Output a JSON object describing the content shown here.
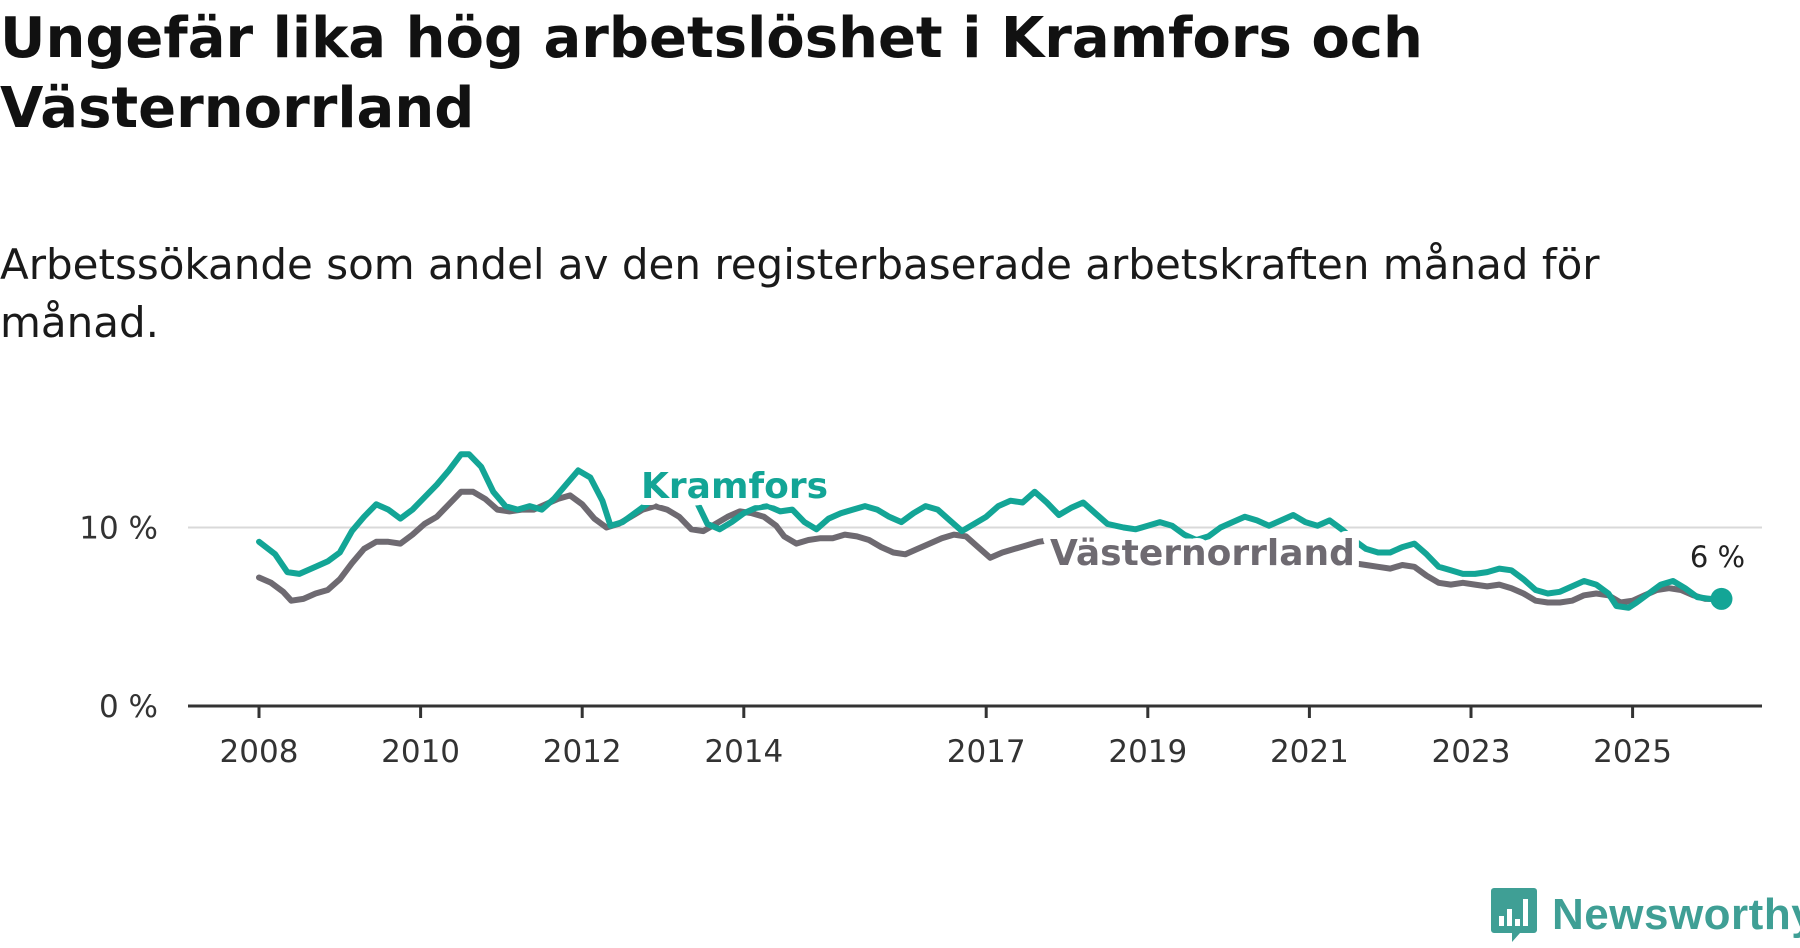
{
  "chart_data": {
    "type": "line",
    "title": "Ungefär lika hög arbetslöshet i Kramfors och Västernorrland",
    "subtitle": "Arbetssökande som andel av den registerbaserade arbetskraften månad för månad.",
    "ylim": [
      0,
      15
    ],
    "y_ticks": [
      {
        "value": 0,
        "label": "0 %"
      },
      {
        "value": 10,
        "label": "10 %"
      }
    ],
    "x_range": [
      2007.0,
      2026.6
    ],
    "x_ticks": [
      {
        "value": 2008,
        "label": "2008"
      },
      {
        "value": 2010,
        "label": "2010"
      },
      {
        "value": 2012,
        "label": "2012"
      },
      {
        "value": 2014,
        "label": "2014"
      },
      {
        "value": 2017,
        "label": "2017"
      },
      {
        "value": 2019,
        "label": "2019"
      },
      {
        "value": 2021,
        "label": "2021"
      },
      {
        "value": 2023,
        "label": "2023"
      },
      {
        "value": 2025,
        "label": "2025"
      }
    ],
    "gridlines": true,
    "series": [
      {
        "name": "Kramfors",
        "color": "#13a596",
        "points": [
          [
            2008.0,
            9.2
          ],
          [
            2008.2,
            8.5
          ],
          [
            2008.35,
            7.5
          ],
          [
            2008.5,
            7.4
          ],
          [
            2008.7,
            7.8
          ],
          [
            2008.85,
            8.1
          ],
          [
            2009.0,
            8.6
          ],
          [
            2009.15,
            9.8
          ],
          [
            2009.3,
            10.6
          ],
          [
            2009.45,
            11.3
          ],
          [
            2009.6,
            11.0
          ],
          [
            2009.75,
            10.5
          ],
          [
            2009.9,
            11.0
          ],
          [
            2010.05,
            11.7
          ],
          [
            2010.2,
            12.4
          ],
          [
            2010.35,
            13.2
          ],
          [
            2010.5,
            14.1
          ],
          [
            2010.6,
            14.1
          ],
          [
            2010.75,
            13.4
          ],
          [
            2010.9,
            12.0
          ],
          [
            2011.05,
            11.2
          ],
          [
            2011.2,
            11.0
          ],
          [
            2011.35,
            11.2
          ],
          [
            2011.5,
            11.0
          ],
          [
            2011.65,
            11.6
          ],
          [
            2011.8,
            12.4
          ],
          [
            2011.95,
            13.2
          ],
          [
            2012.1,
            12.8
          ],
          [
            2012.25,
            11.5
          ],
          [
            2012.35,
            10.1
          ],
          [
            2012.5,
            10.3
          ],
          [
            2012.65,
            10.8
          ],
          [
            2012.8,
            11.3
          ],
          [
            2012.95,
            12.1
          ],
          [
            2013.1,
            12.5
          ],
          [
            2013.25,
            12.4
          ],
          [
            2013.4,
            11.6
          ],
          [
            2013.55,
            10.2
          ],
          [
            2013.7,
            9.9
          ],
          [
            2013.85,
            10.3
          ],
          [
            2014.0,
            10.8
          ],
          [
            2014.15,
            11.1
          ],
          [
            2014.3,
            11.2
          ],
          [
            2014.45,
            10.9
          ],
          [
            2014.6,
            11.0
          ],
          [
            2014.75,
            10.3
          ],
          [
            2014.9,
            9.9
          ],
          [
            2015.05,
            10.5
          ],
          [
            2015.2,
            10.8
          ],
          [
            2015.35,
            11.0
          ],
          [
            2015.5,
            11.2
          ],
          [
            2015.65,
            11.0
          ],
          [
            2015.8,
            10.6
          ],
          [
            2015.95,
            10.3
          ],
          [
            2016.1,
            10.8
          ],
          [
            2016.25,
            11.2
          ],
          [
            2016.4,
            11.0
          ],
          [
            2016.55,
            10.4
          ],
          [
            2016.7,
            9.8
          ],
          [
            2016.85,
            10.2
          ],
          [
            2017.0,
            10.6
          ],
          [
            2017.15,
            11.2
          ],
          [
            2017.3,
            11.5
          ],
          [
            2017.45,
            11.4
          ],
          [
            2017.6,
            12.0
          ],
          [
            2017.75,
            11.4
          ],
          [
            2017.9,
            10.7
          ],
          [
            2018.05,
            11.1
          ],
          [
            2018.2,
            11.4
          ],
          [
            2018.35,
            10.8
          ],
          [
            2018.5,
            10.2
          ],
          [
            2018.7,
            10.0
          ],
          [
            2018.85,
            9.9
          ],
          [
            2019.0,
            10.1
          ],
          [
            2019.15,
            10.3
          ],
          [
            2019.3,
            10.1
          ],
          [
            2019.45,
            9.6
          ],
          [
            2019.6,
            9.3
          ],
          [
            2019.75,
            9.5
          ],
          [
            2019.9,
            10.0
          ],
          [
            2020.05,
            10.3
          ],
          [
            2020.2,
            10.6
          ],
          [
            2020.35,
            10.4
          ],
          [
            2020.5,
            10.1
          ],
          [
            2020.65,
            10.4
          ],
          [
            2020.8,
            10.7
          ],
          [
            2020.95,
            10.3
          ],
          [
            2021.1,
            10.1
          ],
          [
            2021.25,
            10.4
          ],
          [
            2021.4,
            9.9
          ],
          [
            2021.55,
            9.3
          ],
          [
            2021.7,
            8.8
          ],
          [
            2021.85,
            8.6
          ],
          [
            2022.0,
            8.6
          ],
          [
            2022.15,
            8.9
          ],
          [
            2022.3,
            9.1
          ],
          [
            2022.45,
            8.5
          ],
          [
            2022.6,
            7.8
          ],
          [
            2022.75,
            7.6
          ],
          [
            2022.9,
            7.4
          ],
          [
            2023.05,
            7.4
          ],
          [
            2023.2,
            7.5
          ],
          [
            2023.35,
            7.7
          ],
          [
            2023.5,
            7.6
          ],
          [
            2023.65,
            7.1
          ],
          [
            2023.8,
            6.5
          ],
          [
            2023.95,
            6.3
          ],
          [
            2024.1,
            6.4
          ],
          [
            2024.25,
            6.7
          ],
          [
            2024.4,
            7.0
          ],
          [
            2024.55,
            6.8
          ],
          [
            2024.7,
            6.3
          ],
          [
            2024.8,
            5.6
          ],
          [
            2024.95,
            5.5
          ],
          [
            2025.05,
            5.8
          ],
          [
            2025.2,
            6.3
          ],
          [
            2025.35,
            6.8
          ],
          [
            2025.5,
            7.0
          ],
          [
            2025.65,
            6.6
          ],
          [
            2025.8,
            6.1
          ],
          [
            2025.95,
            6.0
          ],
          [
            2026.1,
            6.0
          ]
        ]
      },
      {
        "name": "Västernorrland",
        "color": "#6e6a71",
        "points": [
          [
            2008.0,
            7.2
          ],
          [
            2008.15,
            6.9
          ],
          [
            2008.3,
            6.4
          ],
          [
            2008.4,
            5.9
          ],
          [
            2008.55,
            6.0
          ],
          [
            2008.7,
            6.3
          ],
          [
            2008.85,
            6.5
          ],
          [
            2009.0,
            7.1
          ],
          [
            2009.15,
            8.0
          ],
          [
            2009.3,
            8.8
          ],
          [
            2009.45,
            9.2
          ],
          [
            2009.6,
            9.2
          ],
          [
            2009.75,
            9.1
          ],
          [
            2009.9,
            9.6
          ],
          [
            2010.05,
            10.2
          ],
          [
            2010.2,
            10.6
          ],
          [
            2010.35,
            11.3
          ],
          [
            2010.5,
            12.0
          ],
          [
            2010.65,
            12.0
          ],
          [
            2010.8,
            11.6
          ],
          [
            2010.95,
            11.0
          ],
          [
            2011.1,
            10.9
          ],
          [
            2011.25,
            11.0
          ],
          [
            2011.4,
            11.0
          ],
          [
            2011.55,
            11.3
          ],
          [
            2011.7,
            11.6
          ],
          [
            2011.85,
            11.8
          ],
          [
            2012.0,
            11.3
          ],
          [
            2012.15,
            10.5
          ],
          [
            2012.3,
            10.0
          ],
          [
            2012.45,
            10.2
          ],
          [
            2012.6,
            10.6
          ],
          [
            2012.75,
            11.0
          ],
          [
            2012.9,
            11.2
          ],
          [
            2013.05,
            11.0
          ],
          [
            2013.2,
            10.6
          ],
          [
            2013.35,
            9.9
          ],
          [
            2013.5,
            9.8
          ],
          [
            2013.65,
            10.2
          ],
          [
            2013.8,
            10.6
          ],
          [
            2013.95,
            10.9
          ],
          [
            2014.1,
            10.8
          ],
          [
            2014.25,
            10.6
          ],
          [
            2014.4,
            10.1
          ],
          [
            2014.5,
            9.5
          ],
          [
            2014.65,
            9.1
          ],
          [
            2014.8,
            9.3
          ],
          [
            2014.95,
            9.4
          ],
          [
            2015.1,
            9.4
          ],
          [
            2015.25,
            9.6
          ],
          [
            2015.4,
            9.5
          ],
          [
            2015.55,
            9.3
          ],
          [
            2015.7,
            8.9
          ],
          [
            2015.85,
            8.6
          ],
          [
            2016.0,
            8.5
          ],
          [
            2016.15,
            8.8
          ],
          [
            2016.3,
            9.1
          ],
          [
            2016.45,
            9.4
          ],
          [
            2016.6,
            9.6
          ],
          [
            2016.75,
            9.5
          ],
          [
            2016.9,
            8.9
          ],
          [
            2017.05,
            8.3
          ],
          [
            2017.2,
            8.6
          ],
          [
            2017.35,
            8.8
          ],
          [
            2017.5,
            9.0
          ],
          [
            2017.65,
            9.2
          ],
          [
            2017.8,
            9.3
          ],
          [
            2017.95,
            9.0
          ],
          [
            2018.1,
            8.6
          ],
          [
            2018.25,
            8.5
          ],
          [
            2018.4,
            8.6
          ],
          [
            2018.55,
            8.7
          ],
          [
            2018.7,
            8.6
          ],
          [
            2018.85,
            8.4
          ],
          [
            2019.0,
            8.2
          ],
          [
            2019.15,
            8.0
          ],
          [
            2019.3,
            7.8
          ],
          [
            2019.45,
            7.9
          ],
          [
            2019.6,
            7.8
          ],
          [
            2019.75,
            7.9
          ],
          [
            2019.9,
            8.0
          ],
          [
            2020.05,
            8.2
          ],
          [
            2020.2,
            8.5
          ],
          [
            2020.35,
            8.6
          ],
          [
            2020.5,
            8.6
          ],
          [
            2020.65,
            8.5
          ],
          [
            2020.8,
            8.4
          ],
          [
            2020.95,
            8.3
          ],
          [
            2021.1,
            8.3
          ],
          [
            2021.25,
            8.2
          ],
          [
            2021.4,
            8.1
          ],
          [
            2021.55,
            8.0
          ],
          [
            2021.7,
            7.9
          ],
          [
            2021.85,
            7.8
          ],
          [
            2022.0,
            7.7
          ],
          [
            2022.15,
            7.9
          ],
          [
            2022.3,
            7.8
          ],
          [
            2022.45,
            7.3
          ],
          [
            2022.6,
            6.9
          ],
          [
            2022.75,
            6.8
          ],
          [
            2022.9,
            6.9
          ],
          [
            2023.05,
            6.8
          ],
          [
            2023.2,
            6.7
          ],
          [
            2023.35,
            6.8
          ],
          [
            2023.5,
            6.6
          ],
          [
            2023.65,
            6.3
          ],
          [
            2023.8,
            5.9
          ],
          [
            2023.95,
            5.8
          ],
          [
            2024.1,
            5.8
          ],
          [
            2024.25,
            5.9
          ],
          [
            2024.4,
            6.2
          ],
          [
            2024.55,
            6.3
          ],
          [
            2024.7,
            6.2
          ],
          [
            2024.85,
            5.8
          ],
          [
            2025.0,
            5.9
          ],
          [
            2025.15,
            6.2
          ],
          [
            2025.3,
            6.5
          ],
          [
            2025.45,
            6.6
          ],
          [
            2025.6,
            6.5
          ],
          [
            2025.75,
            6.2
          ],
          [
            2025.9,
            6.0
          ],
          [
            2026.05,
            6.0
          ],
          [
            2026.1,
            6.0
          ]
        ]
      }
    ],
    "annotations": {
      "kramfors_label": "Kramfors",
      "vasternorrland_label": "Västernorrland",
      "end_value_label": "6 %",
      "end_value": 6.0,
      "end_x": 2026.1
    }
  },
  "header": {
    "title": "Ungefär lika hög arbetslöshet i Kramfors och Västernorrland",
    "subtitle": "Arbetssökande som andel av den registerbaserade arbetskraften månad för månad."
  },
  "logo": {
    "text": "Newsworthy",
    "icon": "newsworthy-logo-icon",
    "color": "#3f9f95"
  }
}
